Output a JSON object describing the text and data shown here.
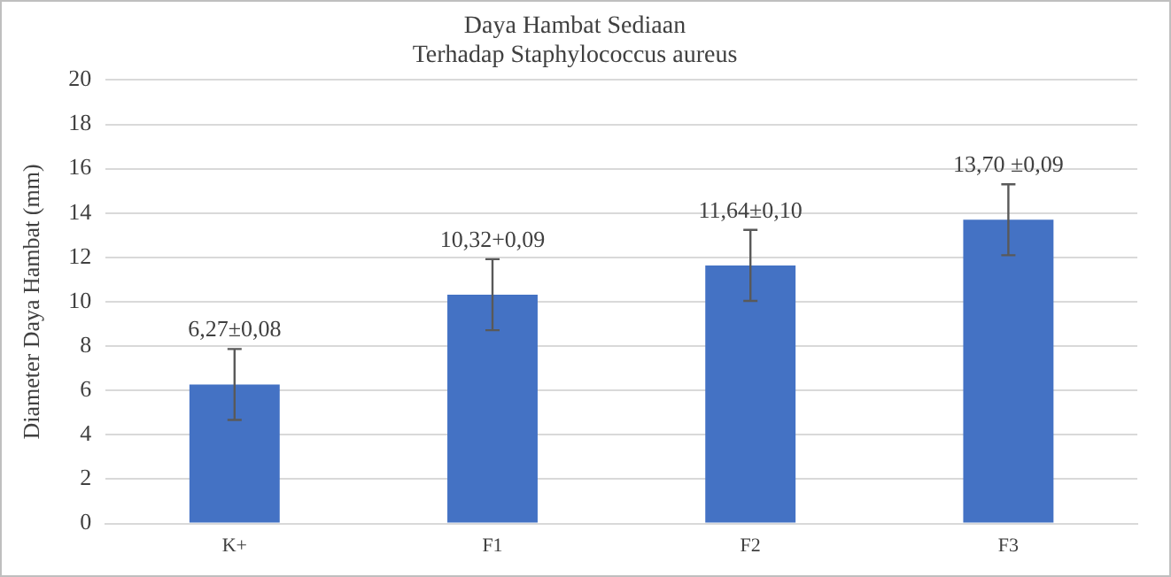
{
  "chart_data": {
    "type": "bar",
    "title": "Daya Hambat Sediaan",
    "subtitle": "Terhadap Staphylococcus aureus",
    "ylabel": "Diameter Daya Hambat (mm)",
    "categories": [
      "K+",
      "F1",
      "F2",
      "F3"
    ],
    "values": [
      6.27,
      10.32,
      11.64,
      13.7
    ],
    "errors": [
      1.6,
      1.6,
      1.6,
      1.6
    ],
    "value_labels": [
      "6,27±0,08",
      "10,32+0,09",
      "11,64±0,10",
      "13,70 ±0,09"
    ],
    "color": "#4472c4",
    "ylim": [
      0,
      20
    ],
    "yticks": [
      0,
      2,
      4,
      6,
      8,
      10,
      12,
      14,
      16,
      18,
      20
    ],
    "grid": "y",
    "legend": false
  }
}
